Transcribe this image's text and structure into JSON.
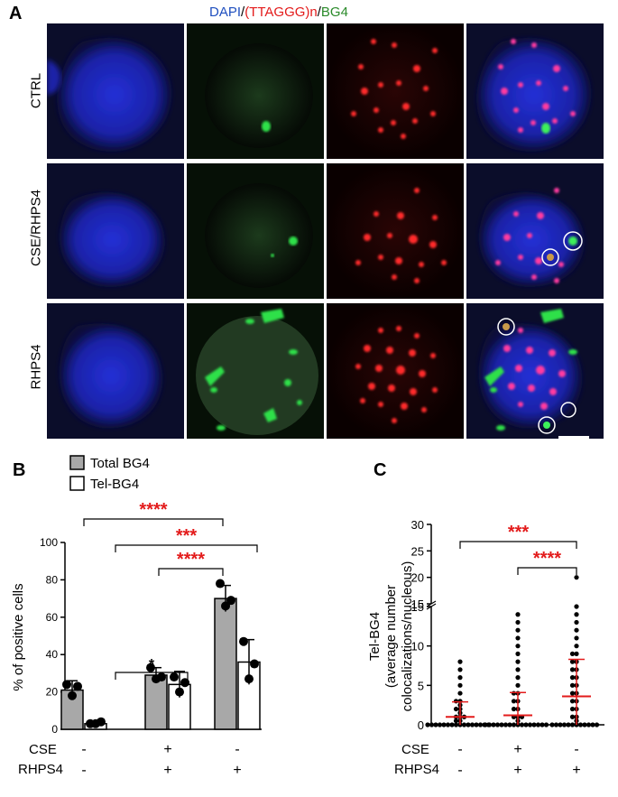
{
  "panelA": {
    "letter": "A",
    "header": {
      "dapi": "DAPI",
      "slash1": "/",
      "telo": "(TTAGGG)n",
      "slash2": "/",
      "bg4": "BG4"
    },
    "rows": [
      "CTRL",
      "CSE/RHPS4",
      "RHPS4"
    ],
    "colors": {
      "dapi": "#1f4fbf",
      "telo": "#e31b1b",
      "bg4": "#2a8a2a"
    }
  },
  "panelB": {
    "letter": "B",
    "legend": [
      "Total BG4",
      "Tel-BG4"
    ],
    "ylabel": "% of positive cells",
    "yticks": [
      "0",
      "20",
      "40",
      "60",
      "80",
      "100"
    ],
    "sig": [
      "****",
      "***",
      "****",
      "*"
    ],
    "cse_label": "CSE",
    "rhps4_label": "RHPS4",
    "cse_signs": [
      "-",
      "+",
      "-"
    ],
    "rhps4_signs": [
      "-",
      "+",
      "+"
    ]
  },
  "panelC": {
    "letter": "C",
    "ylabel_lines": [
      "Tel-BG4",
      "(average number",
      "colocalizations/nucleous)"
    ],
    "yticks_low": [
      "0",
      "5",
      "10",
      "15"
    ],
    "yticks_high": [
      "15",
      "20",
      "25",
      "30"
    ],
    "sig": [
      "***",
      "****"
    ],
    "cse_label": "CSE",
    "rhps4_label": "RHPS4",
    "cse_signs": [
      "-",
      "+",
      "-"
    ],
    "rhps4_signs": [
      "-",
      "+",
      "+"
    ]
  },
  "chart_data": [
    {
      "type": "bar",
      "categories": [
        "CTRL",
        "CSE/RHPS4",
        "RHPS4"
      ],
      "series": [
        {
          "name": "Total BG4",
          "values": [
            21,
            29,
            70
          ],
          "sd": [
            5,
            4,
            7
          ],
          "points": [
            [
              24,
              18,
              23
            ],
            [
              33,
              27,
              28
            ],
            [
              78,
              66,
              69
            ]
          ]
        },
        {
          "name": "Tel-BG4",
          "values": [
            3,
            24,
            36
          ],
          "sd": [
            1,
            7,
            12
          ],
          "points": [
            [
              3,
              3,
              4
            ],
            [
              28,
              20,
              25
            ],
            [
              47,
              27,
              35
            ]
          ]
        }
      ],
      "ylabel": "% of positive cells",
      "ylim": [
        0,
        100
      ]
    },
    {
      "type": "scatter",
      "categories": [
        "CTRL",
        "CSE/RHPS4",
        "RHPS4"
      ],
      "means": [
        1.0,
        1.2,
        3.6
      ],
      "sd": [
        1.9,
        2.9,
        4.7
      ],
      "ylabel": "Tel-BG4 (average number colocalizations/nucleous)",
      "ylim": [
        0,
        30
      ],
      "axis_break": [
        15,
        15
      ]
    }
  ]
}
